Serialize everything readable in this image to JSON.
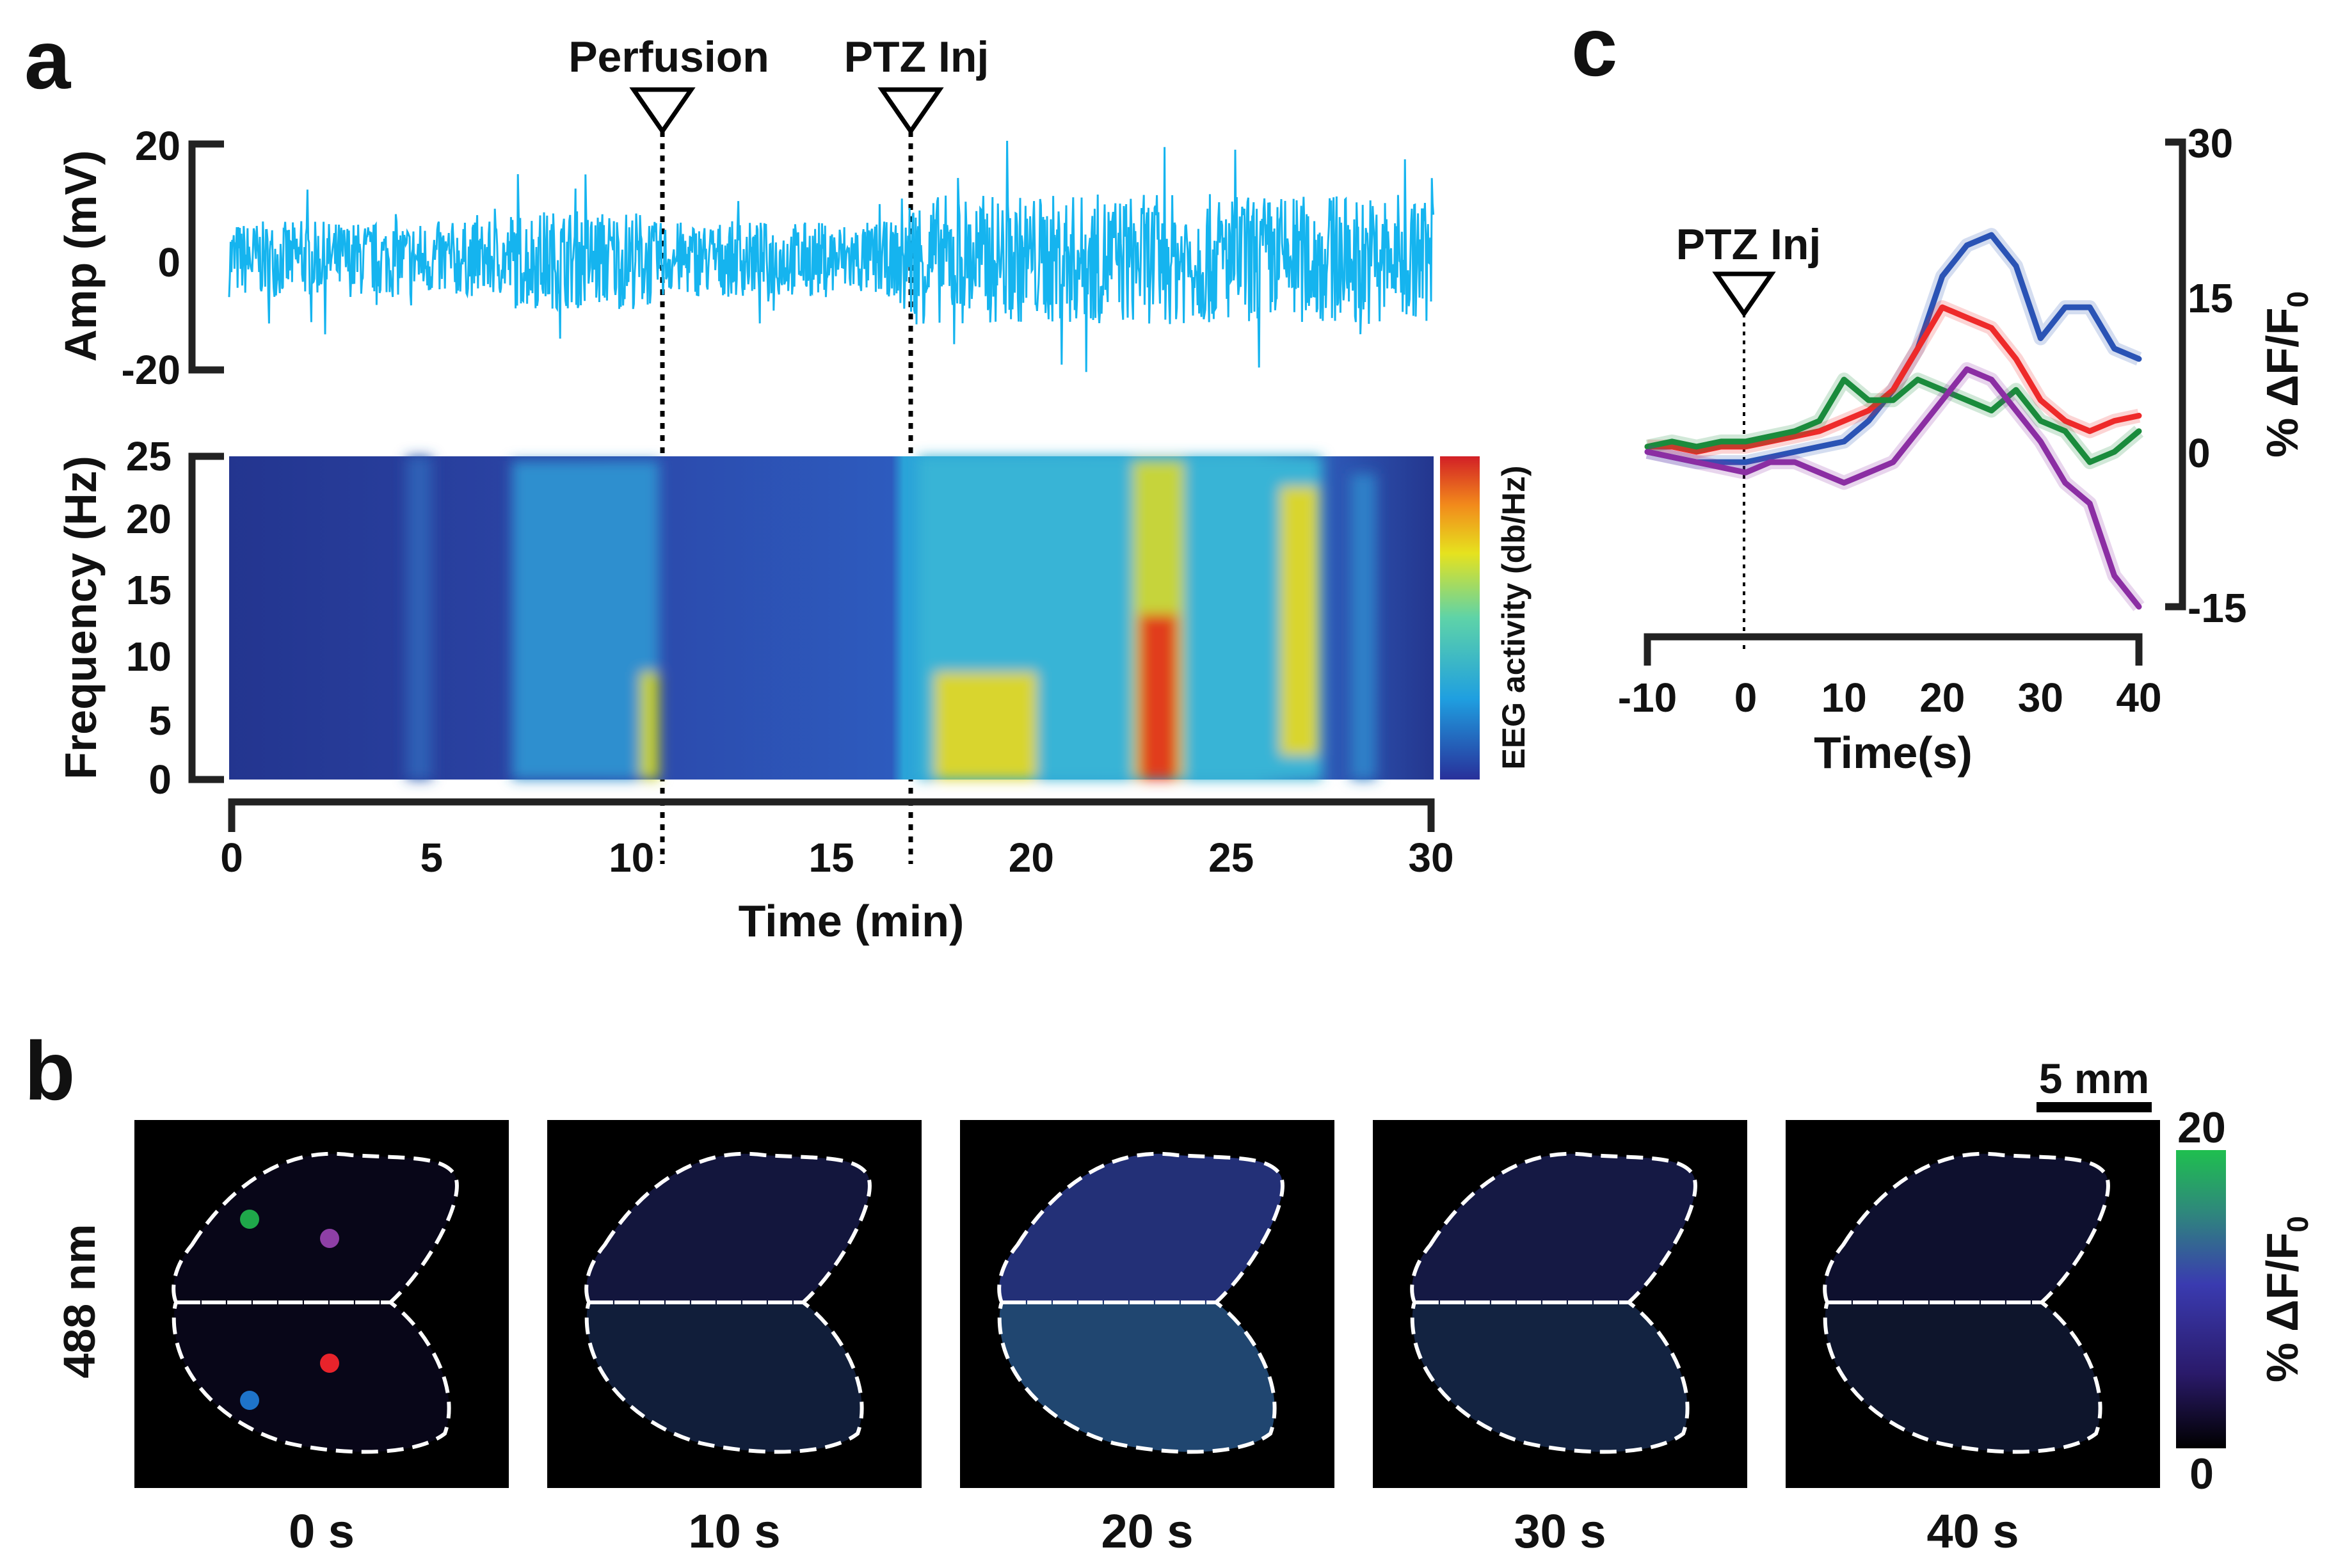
{
  "figure": {
    "panel_letters": [
      "a",
      "b",
      "c"
    ]
  },
  "panel_a": {
    "event_labels": [
      "Perfusion",
      "PTZ Inj"
    ],
    "event_times_min": [
      10.5,
      16.7
    ],
    "eeg_trace": {
      "ylabel": "Amp (mV)",
      "yticks": [
        "20",
        "0",
        "-20"
      ],
      "yrange": [
        -20,
        20
      ],
      "color": "#15b4ef"
    },
    "spectrogram": {
      "ylabel": "Frequency (Hz)",
      "yticks": [
        "25",
        "20",
        "15",
        "10",
        "5",
        "0"
      ],
      "colorbar_label": "EEG activity (db/Hz)"
    },
    "xaxis": {
      "title": "Time (min)",
      "ticks": [
        "0",
        "5",
        "10",
        "15",
        "20",
        "25",
        "30"
      ],
      "range": [
        0,
        30
      ]
    }
  },
  "panel_b": {
    "row_label": "488 nm",
    "frame_labels": [
      "0 s",
      "10 s",
      "20 s",
      "30 s",
      "40 s"
    ],
    "frame_intensity": [
      0.0,
      0.25,
      0.65,
      0.3,
      0.15
    ],
    "scale_bar": "5 mm",
    "colorbar": {
      "max": "20",
      "min": "0",
      "label": "% ΔF/F",
      "sub": "0"
    },
    "roi_colors": [
      "#1fa84a",
      "#8e3fa6",
      "#1e73c9",
      "#e8232b"
    ]
  },
  "chart_data": {
    "type": "line",
    "title": "",
    "annotation": "PTZ Inj",
    "annotation_x": 0,
    "xlabel": "Time(s)",
    "ylabel": "% ΔF/F",
    "ylabel_sub": "0",
    "xticks": [
      "-10",
      "0",
      "10",
      "20",
      "30",
      "40"
    ],
    "yticks": [
      "30",
      "15",
      "0",
      "-15"
    ],
    "xlim": [
      -10,
      40
    ],
    "ylim": [
      -15,
      30
    ],
    "x": [
      -10,
      -7.5,
      -5,
      -2.5,
      0,
      2.5,
      5,
      7.5,
      10,
      12.5,
      15,
      17.5,
      20,
      22.5,
      25,
      27.5,
      30,
      32.5,
      35,
      37.5,
      40
    ],
    "series": [
      {
        "name": "blue",
        "color": "#2a53b5",
        "values": [
          0,
          -0.5,
          -1,
          -1,
          -1,
          -0.5,
          0,
          0.5,
          1,
          3,
          6,
          10,
          17,
          20,
          21,
          18,
          11,
          14,
          14,
          10,
          9
        ]
      },
      {
        "name": "red",
        "color": "#ee2a2a",
        "values": [
          0.5,
          0.5,
          0,
          0.5,
          0.5,
          1,
          1.5,
          2,
          3,
          4,
          6,
          10,
          14,
          13,
          12,
          9,
          5,
          3,
          2,
          3,
          3.5
        ]
      },
      {
        "name": "green",
        "color": "#1a8b3c",
        "values": [
          0.5,
          1,
          0.5,
          1,
          1,
          1.5,
          2,
          3,
          7,
          5,
          5,
          7,
          6,
          5,
          4,
          6,
          3,
          2,
          -1,
          0,
          2
        ]
      },
      {
        "name": "purple",
        "color": "#8b2ea3",
        "values": [
          0,
          -0.5,
          -1,
          -1.5,
          -2,
          -1,
          -1,
          -2,
          -3,
          -2,
          -1,
          2,
          5,
          8,
          7,
          4,
          1,
          -3,
          -5,
          -12,
          -15
        ]
      }
    ]
  }
}
